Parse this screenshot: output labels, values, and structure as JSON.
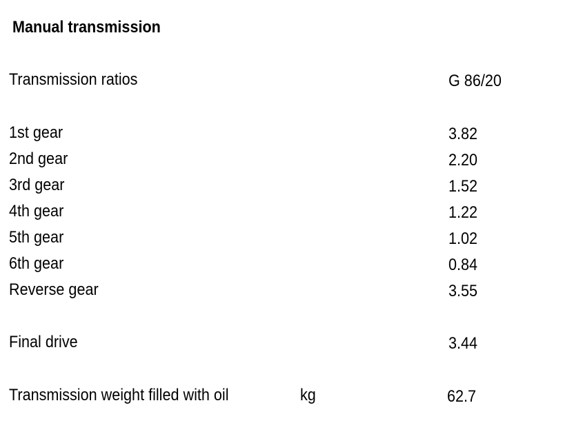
{
  "title": "Manual transmission",
  "header": {
    "label": "Transmission ratios",
    "value": "G 86/20"
  },
  "gears": [
    {
      "label": "1st gear",
      "value": "3.82"
    },
    {
      "label": "2nd gear",
      "value": "2.20"
    },
    {
      "label": "3rd gear",
      "value": "1.52"
    },
    {
      "label": "4th gear",
      "value": "1.22"
    },
    {
      "label": "5th gear",
      "value": "1.02"
    },
    {
      "label": "6th gear",
      "value": "0.84"
    },
    {
      "label": "Reverse gear",
      "value": "3.55"
    }
  ],
  "final_drive": {
    "label": "Final drive",
    "value": "3.44"
  },
  "weight": {
    "label": "Transmission weight filled with oil",
    "unit": "kg",
    "value": "62.7"
  }
}
